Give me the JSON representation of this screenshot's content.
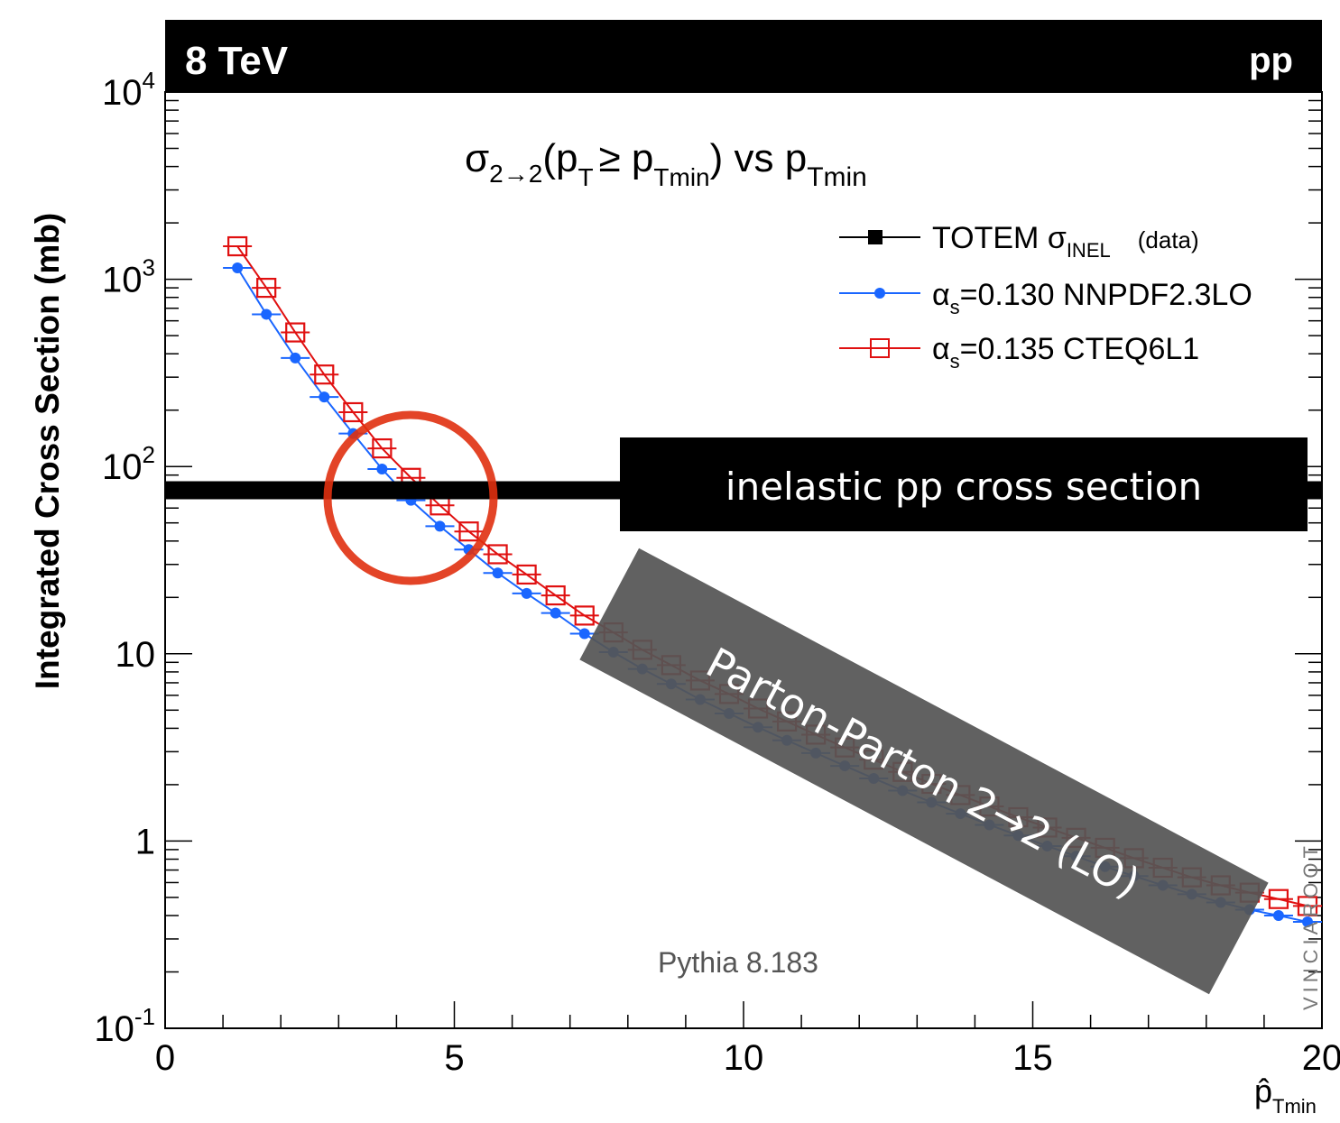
{
  "header": {
    "left_label": "8 TeV",
    "right_label": "pp"
  },
  "formula": {
    "sigma": "σ",
    "sigma_sub": "2→2",
    "open_paren": "(p",
    "pt_sub": "T",
    "ge": "≥ p",
    "tmin_sub": "Tmin",
    "close_vs": ") vs p",
    "tmin_sub2": "Tmin"
  },
  "legend": {
    "totem": {
      "prefix": "TOTEM σ",
      "sub": "INEL",
      "suffix": "(data)"
    },
    "nnpdf": {
      "alpha": "α",
      "sub": "s",
      "text": "=0.130 NNPDF2.3LO"
    },
    "cteq": {
      "alpha": "α",
      "sub": "s",
      "text": "=0.135 CTEQ6L1"
    }
  },
  "annotations": {
    "inelastic_label": "inelastic pp cross section",
    "parton_label": "Parton-Parton 2→2 (LO)",
    "generator": "Pythia 8.183",
    "watermark": "VINCIAROOT"
  },
  "axes": {
    "ylabel": "Integrated Cross Section (mb)",
    "xlabel_main": "p̂",
    "xlabel_sub": "Tmin",
    "x_ticks": [
      "0",
      "5",
      "10",
      "15",
      "20"
    ],
    "y_ticks": [
      {
        "base": "10",
        "exp": "-1"
      },
      {
        "base": "1",
        "exp": ""
      },
      {
        "base": "10",
        "exp": ""
      },
      {
        "base": "10",
        "exp": "2"
      },
      {
        "base": "10",
        "exp": "3"
      },
      {
        "base": "10",
        "exp": "4"
      }
    ]
  },
  "colors": {
    "nnpdf": "#1a66ff",
    "cteq": "#e01010",
    "circle": "#e03010",
    "band": "#000000",
    "parton_box": "#555555"
  },
  "chart_data": {
    "type": "line",
    "title": "σ2→2(pT≥ pTmin) vs pTmin",
    "xlabel": "p̂Tmin",
    "ylabel": "Integrated Cross Section (mb)",
    "xlim": [
      0,
      20
    ],
    "ylim": [
      0.1,
      10000
    ],
    "yscale": "log",
    "legend_position": "top-right",
    "x": [
      1.25,
      1.75,
      2.25,
      2.75,
      3.25,
      3.75,
      4.25,
      4.75,
      5.25,
      5.75,
      6.25,
      6.75,
      7.25,
      7.75,
      8.25,
      8.75,
      9.25,
      9.75,
      10.25,
      10.75,
      11.25,
      11.75,
      12.25,
      12.75,
      13.25,
      13.75,
      14.25,
      14.75,
      15.25,
      15.75,
      16.25,
      16.75,
      17.25,
      17.75,
      18.25,
      18.75,
      19.25,
      19.75
    ],
    "series": [
      {
        "name": "α_s=0.130 NNPDF2.3LO",
        "values": [
          1150,
          650,
          380,
          235,
          150,
          97,
          66,
          48,
          36,
          27,
          21,
          16.5,
          12.8,
          10.2,
          8.3,
          6.9,
          5.7,
          4.8,
          4.05,
          3.45,
          2.95,
          2.52,
          2.16,
          1.86,
          1.61,
          1.4,
          1.22,
          1.07,
          0.94,
          0.83,
          0.73,
          0.65,
          0.58,
          0.52,
          0.47,
          0.43,
          0.4,
          0.37
        ]
      },
      {
        "name": "α_s=0.135 CTEQ6L1",
        "values": [
          1500,
          900,
          520,
          310,
          195,
          125,
          87,
          62,
          45,
          34,
          26.5,
          20.5,
          16,
          13,
          10.5,
          8.7,
          7.2,
          6.1,
          5.1,
          4.35,
          3.7,
          3.16,
          2.72,
          2.34,
          2.02,
          1.76,
          1.53,
          1.34,
          1.18,
          1.04,
          0.92,
          0.81,
          0.72,
          0.64,
          0.58,
          0.53,
          0.49,
          0.45
        ]
      }
    ],
    "reference_line": {
      "name": "TOTEM σINEL (data)",
      "y": 74.7
    }
  }
}
